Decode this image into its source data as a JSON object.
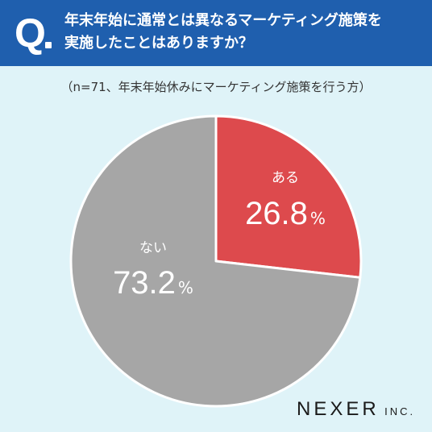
{
  "header": {
    "q_mark": "Q",
    "question_line1": "年末年始に通常とは異なるマーケティング施策を",
    "question_line2": "実施したことはありますか？",
    "background_color": "#1f5fae"
  },
  "note": "（n=71、年末年始休みにマーケティング施策を行う方）",
  "chart_data": {
    "type": "pie",
    "slices": [
      {
        "label": "ある",
        "value": 26.8,
        "display": "26.8",
        "unit": "%",
        "color": "#dd4a4d"
      },
      {
        "label": "ない",
        "value": 73.2,
        "display": "73.2",
        "unit": "%",
        "color": "#a6a6a6"
      }
    ],
    "start": "12 o'clock",
    "direction": "clockwise"
  },
  "logo": {
    "main": "NEXER",
    "sub": "INC."
  }
}
